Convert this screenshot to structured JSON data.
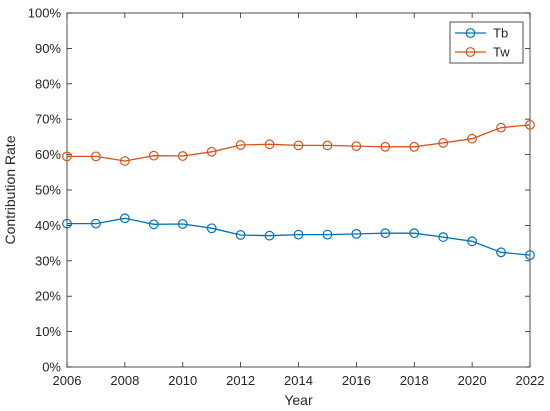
{
  "chart_data": {
    "type": "line",
    "xlabel": "Year",
    "ylabel": "Contribution Rate",
    "xlim": [
      2006,
      2022
    ],
    "ylim": [
      0,
      100
    ],
    "x_ticks": [
      2006,
      2008,
      2010,
      2012,
      2014,
      2016,
      2018,
      2020,
      2022
    ],
    "y_ticks": [
      "0%",
      "10%",
      "20%",
      "30%",
      "40%",
      "50%",
      "60%",
      "70%",
      "80%",
      "90%",
      "100%"
    ],
    "grid": false,
    "legend_position": "top-right",
    "x": [
      2006,
      2007,
      2008,
      2009,
      2010,
      2011,
      2012,
      2013,
      2014,
      2015,
      2016,
      2017,
      2018,
      2019,
      2020,
      2021,
      2022
    ],
    "series": [
      {
        "name": "Tb",
        "color": "#0072BD",
        "marker": "circle-open",
        "values": [
          40.5,
          40.5,
          42.0,
          40.3,
          40.4,
          39.2,
          37.3,
          37.1,
          37.4,
          37.4,
          37.6,
          37.8,
          37.8,
          36.7,
          35.5,
          32.4,
          31.6
        ]
      },
      {
        "name": "Tw",
        "color": "#D95319",
        "marker": "circle-open",
        "values": [
          59.5,
          59.5,
          58.2,
          59.7,
          59.6,
          60.8,
          62.7,
          62.9,
          62.6,
          62.6,
          62.4,
          62.2,
          62.2,
          63.3,
          64.5,
          67.6,
          68.4
        ]
      }
    ]
  }
}
